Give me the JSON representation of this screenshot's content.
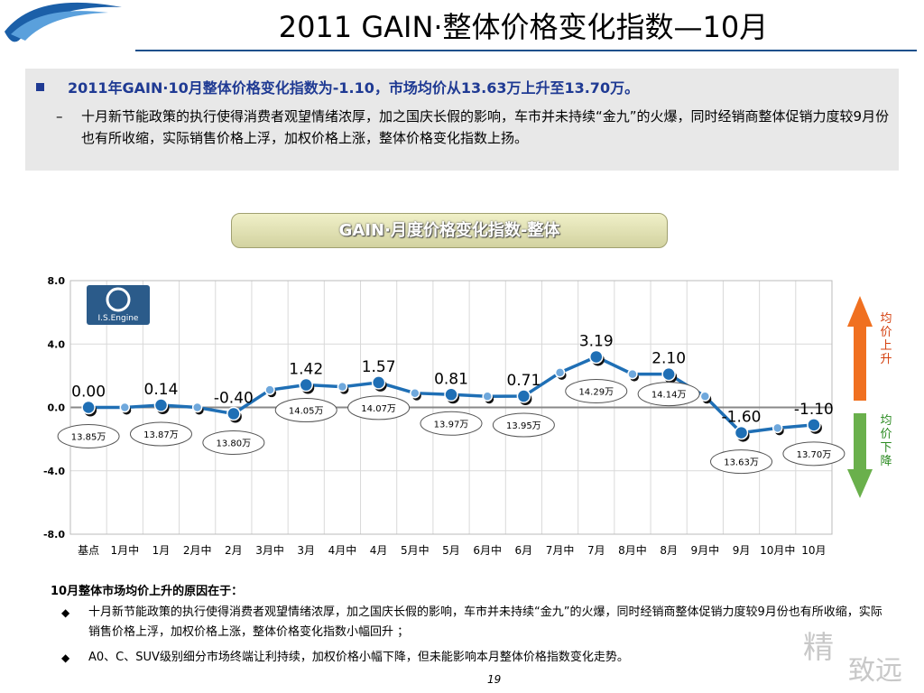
{
  "title": "2011 GAIN·整体价格变化指数—10月",
  "summary": {
    "bullet": "2011年GAIN·10月整体价格变化指数为-1.10，市场均价从13.63万上升至13.70万。",
    "sub": "十月新节能政策的执行使得消费者观望情绪浓厚，加之国庆长假的影响，车市并未持续“金九”的火爆，同时经销商整体促销力度较9月份也有所收缩，实际销售价格上浮，加权价格上涨，整体价格变化指数上扬。"
  },
  "chart_title": "GAIN·月度价格变化指数-整体",
  "logo_text": "I.S.Engine",
  "arrows": {
    "up_label": "均价上升",
    "down_label": "均价下降",
    "up_color": "#f07020",
    "down_color": "#6ab04c"
  },
  "chart_data": {
    "type": "line",
    "categories": [
      "基点",
      "1月中",
      "1月",
      "2月中",
      "2月",
      "3月中",
      "3月",
      "4月中",
      "4月",
      "5月中",
      "5月",
      "6月中",
      "6月",
      "7月中",
      "7月",
      "8月中",
      "8月",
      "9月中",
      "9月",
      "10月中",
      "10月"
    ],
    "values": [
      0.0,
      0.0,
      0.14,
      0.0,
      -0.4,
      1.1,
      1.42,
      1.3,
      1.57,
      0.9,
      0.81,
      0.7,
      0.71,
      2.2,
      3.19,
      2.1,
      2.1,
      0.7,
      -1.6,
      -1.3,
      -1.1
    ],
    "value_labels": [
      "0.00",
      "",
      "0.14",
      "",
      "-0.40",
      "",
      "1.42",
      "",
      "1.57",
      "",
      "0.81",
      "",
      "0.71",
      "",
      "3.19",
      "",
      "2.10",
      "",
      "-1.60",
      "",
      "-1.10"
    ],
    "price_labels": [
      {
        "index": 0,
        "text": "13.85万"
      },
      {
        "index": 2,
        "text": "13.87万"
      },
      {
        "index": 4,
        "text": "13.80万"
      },
      {
        "index": 6,
        "text": "14.05万"
      },
      {
        "index": 8,
        "text": "14.07万"
      },
      {
        "index": 10,
        "text": "13.97万"
      },
      {
        "index": 12,
        "text": "13.95万"
      },
      {
        "index": 14,
        "text": "14.29万"
      },
      {
        "index": 16,
        "text": "14.14万"
      },
      {
        "index": 18,
        "text": "13.63万"
      },
      {
        "index": 20,
        "text": "13.70万"
      }
    ],
    "yticks": [
      "8.0",
      "4.0",
      "0.0",
      "-4.0",
      "-8.0"
    ],
    "ylim": [
      -8,
      8
    ],
    "line_color": "#1f6fb5",
    "grid": true
  },
  "reasons": {
    "title": "10月整体市场均价上升的原因在于：",
    "items": [
      "十月新节能政策的执行使得消费者观望情绪浓厚，加之国庆长假的影响，车市并未持续“金九”的火爆，同时经销商整体促销力度较9月份也有所收缩，实际销售价格上浮，加权价格上涨，整体价格变化指数小幅回升 ；",
      "A0、C、SUV级别细分市场终端让利持续，加权价格小幅下降，但未能影响本月整体价格指数变化走势。"
    ]
  },
  "page_number": "19",
  "watermark": {
    "line1": "精",
    "line2": "致远"
  }
}
